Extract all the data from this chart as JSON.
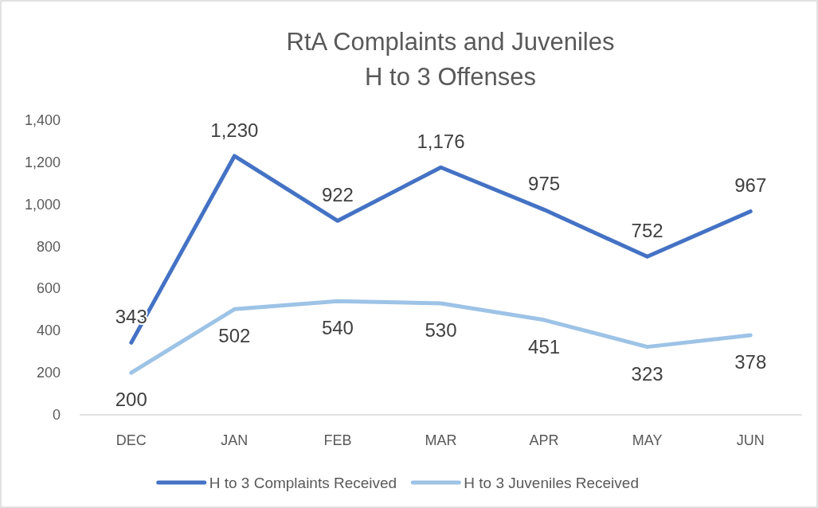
{
  "chart_data": {
    "type": "line",
    "title": "RtA Complaints and Juveniles",
    "subtitle": "H to 3 Offenses",
    "categories": [
      "DEC",
      "JAN",
      "FEB",
      "MAR",
      "APR",
      "MAY",
      "JUN"
    ],
    "series": [
      {
        "name": "H to 3 Complaints Received",
        "color": "#4472c4",
        "values": [
          343,
          1230,
          922,
          1176,
          975,
          752,
          967
        ],
        "value_labels": [
          "343",
          "1,230",
          "922",
          "1,176",
          "975",
          "752",
          "967"
        ]
      },
      {
        "name": "H to 3 Juveniles Received",
        "color": "#9dc3e6",
        "values": [
          200,
          502,
          540,
          530,
          451,
          323,
          378
        ],
        "value_labels": [
          "200",
          "502",
          "540",
          "530",
          "451",
          "323",
          "378"
        ]
      }
    ],
    "ylim": [
      0,
      1400
    ],
    "yticks": [
      {
        "value": 0,
        "label": "0"
      },
      {
        "value": 200,
        "label": "200"
      },
      {
        "value": 400,
        "label": "400"
      },
      {
        "value": 600,
        "label": "600"
      },
      {
        "value": 800,
        "label": "800"
      },
      {
        "value": 1000,
        "label": "1,000"
      },
      {
        "value": 1200,
        "label": "1,200"
      },
      {
        "value": 1400,
        "label": "1,400"
      }
    ],
    "grid": false,
    "legend": "bottom",
    "marker": "none",
    "line_style": "solid"
  }
}
